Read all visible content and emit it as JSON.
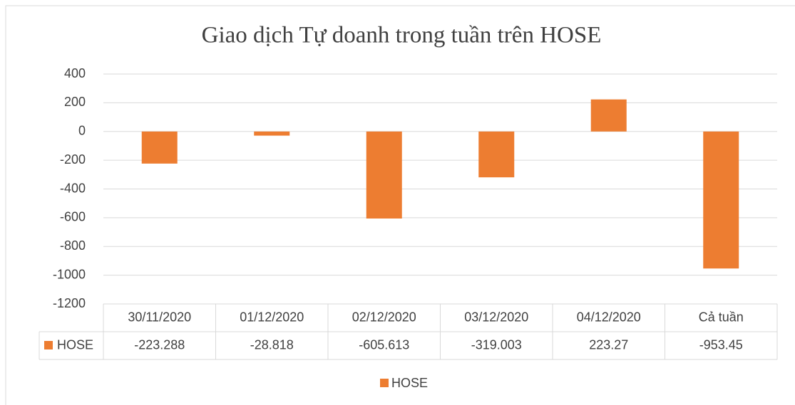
{
  "chart_data": {
    "type": "bar",
    "title": "Giao dịch Tự doanh trong tuần trên HOSE",
    "categories": [
      "30/11/2020",
      "01/12/2020",
      "02/12/2020",
      "03/12/2020",
      "04/12/2020",
      "Cả tuần"
    ],
    "series": [
      {
        "name": "HOSE",
        "color": "#ed7d31",
        "values": [
          -223.288,
          -28.818,
          -605.613,
          -319.003,
          223.27,
          -953.45
        ]
      }
    ],
    "ylim": [
      -1200,
      400
    ],
    "yticks": [
      -1200,
      -1000,
      -800,
      -600,
      -400,
      -200,
      0,
      200,
      400
    ],
    "grid": true,
    "legend": "bottom",
    "data_table": true
  }
}
